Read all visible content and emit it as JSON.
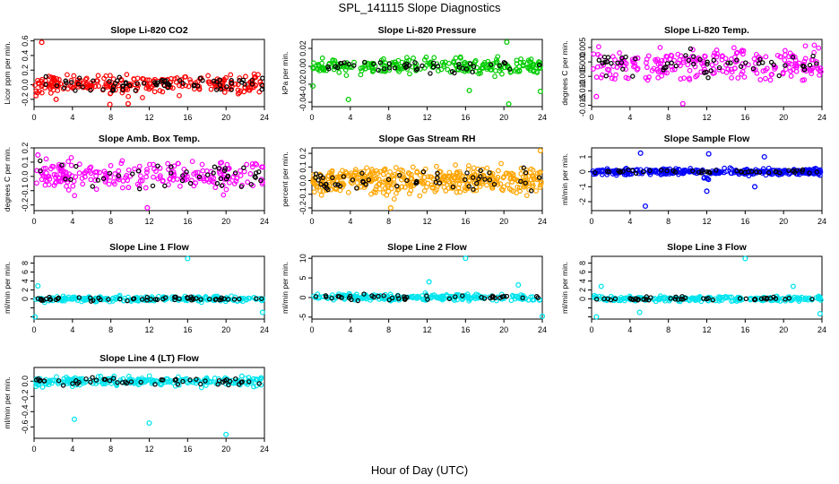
{
  "title": "SPL_141115  Slope Diagnostics",
  "xlabel": "Hour of Day (UTC)",
  "chart_data": [
    {
      "type": "scatter",
      "title": "Slope Li-820 CO2",
      "ylabel": "Licor ppm per min.",
      "color": "#ff0000",
      "xlim": [
        0,
        24
      ],
      "xticks": [
        0,
        4,
        8,
        12,
        16,
        20,
        24
      ],
      "ylim": [
        -0.3,
        0.62
      ],
      "yticks": [
        -0.2,
        0.0,
        0.2,
        0.4,
        0.6
      ],
      "ytick_labels": [
        "-0.2",
        "0.0",
        "0.2",
        "0.4",
        "0.6"
      ],
      "series": [
        {
          "values": "bulk scatter, hours 0-24, mostly between -0.2 and 0.2"
        },
        {
          "name": "",
          "values": [
            [
              0.8,
              0.58
            ],
            [
              2.3,
              -0.2
            ],
            [
              7.9,
              -0.27
            ],
            [
              9.8,
              -0.26
            ]
          ]
        }
      ]
    },
    {
      "type": "scatter",
      "title": "Slope Li-820 Pressure",
      "ylabel": "kPa per min.",
      "color": "#00cc00",
      "xlim": [
        0,
        24
      ],
      "xticks": [
        0,
        4,
        8,
        12,
        16,
        20,
        24
      ],
      "ylim": [
        -0.045,
        0.03
      ],
      "yticks": [
        -0.04,
        -0.02,
        0.0,
        0.02
      ],
      "ytick_labels": [
        "-0.04",
        "-0.02",
        "0.00",
        "0.02"
      ],
      "series": [
        {
          "values": "bulk scatter mostly between -0.01 and 0.01"
        },
        {
          "name": "",
          "values": [
            [
              3.8,
              -0.037
            ],
            [
              16.4,
              -0.027
            ],
            [
              20.5,
              -0.042
            ],
            [
              23.8,
              -0.028
            ],
            [
              20.3,
              0.027
            ],
            [
              0.1,
              -0.022
            ]
          ]
        }
      ]
    },
    {
      "type": "scatter",
      "title": "Slope Li-820 Temp.",
      "ylabel": "degrees C per min.",
      "color": "#ff00ff",
      "xlim": [
        0,
        24
      ],
      "xticks": [
        0,
        4,
        8,
        12,
        16,
        20,
        24
      ],
      "ylim": [
        -0.0155,
        0.0078
      ],
      "yticks": [
        -0.015,
        -0.01,
        -0.005,
        0.0,
        0.005
      ],
      "ytick_labels": [
        "-0.015",
        "-0.010",
        "-0.005",
        "0.000",
        "0.005"
      ],
      "series": [
        {
          "values": "bulk scatter mostly between -0.008 and 0.006"
        },
        {
          "name": "",
          "values": [
            [
              9.5,
              -0.0145
            ],
            [
              0.5,
              -0.012
            ]
          ]
        }
      ]
    },
    {
      "type": "scatter",
      "title": "Slope Amb. Box Temp.",
      "ylabel": "degrees C per min.",
      "color": "#ff00ff",
      "xlim": [
        0,
        24
      ],
      "xticks": [
        0,
        4,
        8,
        12,
        16,
        20,
        24
      ],
      "ylim": [
        -0.24,
        0.2
      ],
      "yticks": [
        -0.2,
        -0.1,
        0.0,
        0.1,
        0.2
      ],
      "ytick_labels": [
        "-0.2",
        "-0.1",
        "0.0",
        "0.1",
        "0.2"
      ],
      "series": [
        {
          "values": "bulk scatter mostly between -0.15 and 0.15"
        },
        {
          "name": "",
          "values": [
            [
              11.8,
              -0.22
            ],
            [
              0.4,
              0.15
            ]
          ]
        }
      ]
    },
    {
      "type": "scatter",
      "title": "Slope Gas Stream RH",
      "ylabel": "percent per min.",
      "color": "#ffa500",
      "xlim": [
        0,
        24
      ],
      "xticks": [
        0,
        4,
        8,
        12,
        16,
        20,
        24
      ],
      "ylim": [
        -0.22,
        0.24
      ],
      "yticks": [
        -0.2,
        -0.1,
        0.0,
        0.1,
        0.2
      ],
      "ytick_labels": [
        "-0.2",
        "-0.1",
        "0.0",
        "0.1",
        "0.2"
      ],
      "series": [
        {
          "values": "dense band between -0.12 and 0.12"
        },
        {
          "name": "",
          "values": [
            [
              8.2,
              -0.2
            ],
            [
              23.8,
              0.22
            ]
          ]
        }
      ]
    },
    {
      "type": "scatter",
      "title": "Slope Sample Flow",
      "ylabel": "ml/min per min.",
      "color": "#0000ff",
      "xlim": [
        0,
        24
      ],
      "xticks": [
        0,
        4,
        8,
        12,
        16,
        20,
        24
      ],
      "ylim": [
        -2.6,
        1.6
      ],
      "yticks": [
        -2,
        -1,
        0,
        1
      ],
      "ytick_labels": [
        "-2",
        "-1",
        "0",
        "1"
      ],
      "series": [
        {
          "values": "tight band near 0 with dip near hour 12"
        },
        {
          "name": "",
          "values": [
            [
              5.6,
              -2.3
            ],
            [
              5.1,
              1.25
            ],
            [
              12.0,
              -1.3
            ],
            [
              12.2,
              1.2
            ],
            [
              17.0,
              -1.0
            ],
            [
              18.0,
              1.0
            ]
          ]
        }
      ]
    },
    {
      "type": "scatter",
      "title": "Slope Line 1 Flow",
      "ylabel": "ml/min per min.",
      "color": "#00e5ee",
      "xlim": [
        0,
        24
      ],
      "xticks": [
        0,
        4,
        8,
        12,
        16,
        20,
        24
      ],
      "ylim": [
        -4.5,
        9.5
      ],
      "yticks": [
        -4,
        -2,
        0,
        2,
        4,
        6,
        8
      ],
      "ytick_labels": [
        "",
        "",
        "0",
        "2",
        "4",
        "6",
        "8"
      ],
      "series": [
        {
          "values": "bulk scatter mostly between -1 and 1"
        },
        {
          "name": "",
          "values": [
            [
              16.0,
              9.0
            ],
            [
              0.1,
              -4.0
            ],
            [
              0.4,
              2.9
            ],
            [
              23.8,
              -3.0
            ]
          ]
        }
      ]
    },
    {
      "type": "scatter",
      "title": "Slope Line 2 Flow",
      "ylabel": "ml/min per min.",
      "color": "#00e5ee",
      "xlim": [
        0,
        24
      ],
      "xticks": [
        0,
        4,
        8,
        12,
        16,
        20,
        24
      ],
      "ylim": [
        -5.5,
        10.5
      ],
      "yticks": [
        -5,
        0,
        5,
        10
      ],
      "ytick_labels": [
        "-5",
        "0",
        "5",
        "10"
      ],
      "series": [
        {
          "values": "bulk scatter mostly between -1.5 and 1.5"
        },
        {
          "name": "",
          "values": [
            [
              16.0,
              10.0
            ],
            [
              24.0,
              -4.8
            ],
            [
              12.2,
              4.0
            ],
            [
              21.5,
              3.2
            ]
          ]
        }
      ]
    },
    {
      "type": "scatter",
      "title": "Slope Line 3 Flow",
      "ylabel": "ml/min per min.",
      "color": "#00e5ee",
      "xlim": [
        0,
        24
      ],
      "xticks": [
        0,
        4,
        8,
        12,
        16,
        20,
        24
      ],
      "ylim": [
        -4.5,
        9.5
      ],
      "yticks": [
        -4,
        -2,
        0,
        2,
        4,
        6,
        8
      ],
      "ytick_labels": [
        "",
        "",
        "0",
        "2",
        "4",
        "6",
        "8"
      ],
      "series": [
        {
          "values": "bulk scatter mostly between -1 and 1"
        },
        {
          "name": "",
          "values": [
            [
              16.0,
              9.0
            ],
            [
              0.5,
              -4.0
            ],
            [
              1.0,
              2.8
            ],
            [
              23.8,
              -3.3
            ],
            [
              21.0,
              2.8
            ],
            [
              5.0,
              -3.0
            ]
          ]
        }
      ]
    },
    {
      "type": "scatter",
      "title": "Slope Line 4 (LT) Flow",
      "ylabel": "ml/min per min.",
      "color": "#00e5ee",
      "xlim": [
        0,
        24
      ],
      "xticks": [
        0,
        4,
        8,
        12,
        16,
        20,
        24
      ],
      "ylim": [
        -0.75,
        0.18
      ],
      "yticks": [
        -0.6,
        -0.4,
        -0.2,
        0.0
      ],
      "ytick_labels": [
        "-0.6",
        "-0.4",
        "-0.2",
        "0.0"
      ],
      "series": [
        {
          "values": "bulk scatter mostly between -0.1 and 0.12"
        },
        {
          "name": "",
          "values": [
            [
              4.2,
              -0.5
            ],
            [
              12.0,
              -0.55
            ],
            [
              20.0,
              -0.7
            ]
          ]
        }
      ]
    }
  ]
}
